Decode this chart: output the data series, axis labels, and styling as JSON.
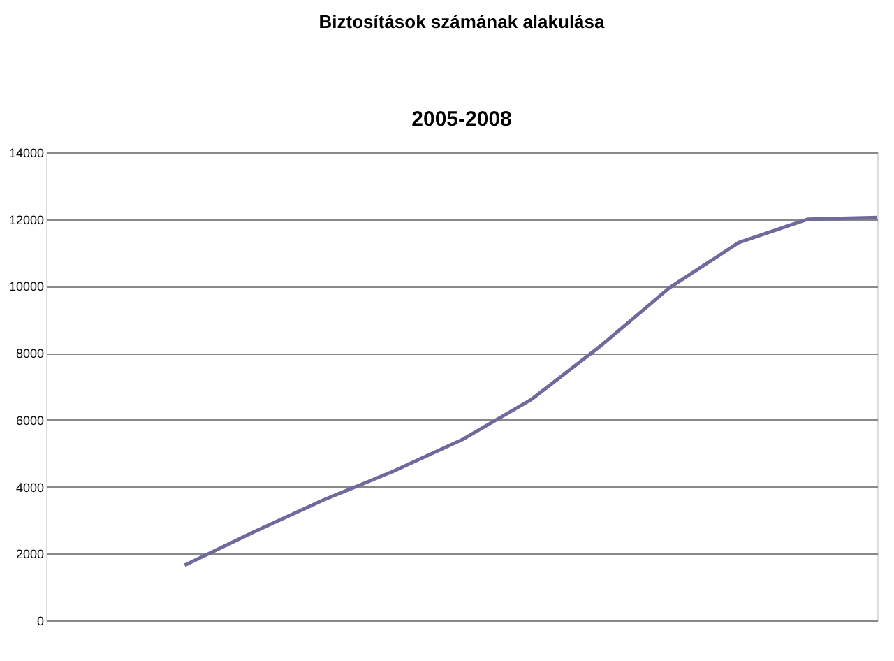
{
  "chart_data": {
    "type": "line",
    "title": "Biztosítások számának alakulása",
    "subtitle": "2005-2008",
    "categories": [
      null,
      null,
      null,
      null,
      null,
      null,
      null,
      null,
      null,
      null,
      null,
      null,
      null
    ],
    "series": [
      {
        "color": "#6f6a9c",
        "values": [
          null,
          null,
          1650,
          2650,
          3600,
          4450,
          5400,
          6600,
          8200,
          9950,
          11300,
          12000,
          12050
        ]
      }
    ],
    "ylim": [
      0,
      14000
    ],
    "yticks": [
      0,
      2000,
      4000,
      6000,
      8000,
      10000,
      12000,
      14000
    ],
    "grid": "y",
    "legend": false,
    "marker": "none",
    "line_style": "solid"
  }
}
